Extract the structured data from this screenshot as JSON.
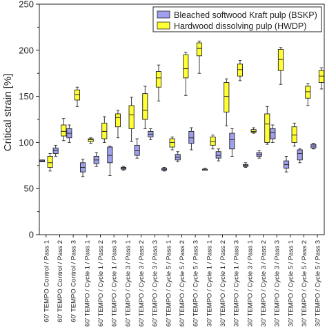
{
  "chart_data": {
    "type": "box",
    "ylabel": "Critical strain [%]",
    "ylim": [
      0,
      250
    ],
    "yticks": [
      0,
      50,
      100,
      150,
      200,
      250
    ],
    "legend_position": "top-right",
    "categories": [
      "60' TEMPO Control / Pass 1",
      "60' TEMPO Control / Pass 2",
      "60' TEMPO Control / Pass 3",
      "60' TEMPO / Cycle 1 / Pass 1",
      "60' TEMPO / Cycle 1 / Pass 2",
      "60' TEMPO / Cycle 1 / Pass 3",
      "60' TEMPO / Cycle 3 / Pass 1",
      "60' TEMPO / Cycle 3 / Pass 2",
      "60' TEMPO / Cycle 3 / Pass 3",
      "60' TEMPO / Cycle 5 / Pass 1",
      "60' TEMPO / Cycle 5 / Pass 2",
      "60' TEMPO / Cycle 5 / Pass 3",
      "30' TEMPO / Cycle 1 / Pass 1",
      "30' TEMPO / Cycle 1 / Pass 2",
      "30' TEMPO / Cycle 1 / Pass 3",
      "30' TEMPO / Cycle 3 / Pass 1",
      "30' TEMPO / Cycle 3 / Pass 2",
      "30' TEMPO / Cycle 3 / Pass 3",
      "30' TEMPO / Cycle 5 / Pass 1",
      "30' TEMPO / Cycle 5 / Pass 2",
      "30' TEMPO / Cycle 5 / Pass 3"
    ],
    "series": [
      {
        "name": "Bleached softwood Kraft pulp (BSKP)",
        "color": "#9f9fec",
        "boxes": [
          {
            "min": 79,
            "q1": 79,
            "median": 80,
            "q3": 81,
            "max": 81
          },
          {
            "min": 85,
            "q1": 88,
            "median": 91,
            "q3": 94,
            "max": 97
          },
          {
            "min": 100,
            "q1": 105,
            "median": 110,
            "q3": 115,
            "max": 119
          },
          {
            "min": 63,
            "q1": 68,
            "median": 73,
            "q3": 78,
            "max": 82
          },
          {
            "min": 74,
            "q1": 77,
            "median": 81,
            "q3": 85,
            "max": 89
          },
          {
            "min": 64,
            "q1": 78,
            "median": 86,
            "q3": 95,
            "max": 96
          },
          {
            "min": 70,
            "q1": 71,
            "median": 72,
            "q3": 73,
            "max": 74
          },
          {
            "min": 83,
            "q1": 86,
            "median": 91,
            "q3": 97,
            "max": 104
          },
          {
            "min": 103,
            "q1": 106,
            "median": 109,
            "q3": 112,
            "max": 115
          },
          {
            "min": 69,
            "q1": 70,
            "median": 71,
            "q3": 72,
            "max": 73
          },
          {
            "min": 79,
            "q1": 81,
            "median": 84,
            "q3": 87,
            "max": 90
          },
          {
            "min": 92,
            "q1": 99,
            "median": 105,
            "q3": 112,
            "max": 116
          },
          {
            "min": 70,
            "q1": 70,
            "median": 71,
            "q3": 71,
            "max": 72
          },
          {
            "min": 80,
            "q1": 83,
            "median": 86,
            "q3": 90,
            "max": 93
          },
          {
            "min": 85,
            "q1": 93,
            "median": 103,
            "q3": 110,
            "max": 115
          },
          {
            "min": 73,
            "q1": 74,
            "median": 75,
            "q3": 76,
            "max": 78
          },
          {
            "min": 83,
            "q1": 85,
            "median": 87,
            "q3": 89,
            "max": 91
          },
          {
            "min": 100,
            "q1": 104,
            "median": 111,
            "q3": 115,
            "max": 119
          },
          {
            "min": 68,
            "q1": 72,
            "median": 76,
            "q3": 80,
            "max": 85
          },
          {
            "min": 78,
            "q1": 81,
            "median": 88,
            "q3": 92,
            "max": 93
          },
          {
            "min": 93,
            "q1": 94,
            "median": 96,
            "q3": 98,
            "max": 99
          }
        ]
      },
      {
        "name": "Hardwood dissolving pulp (HWDP)",
        "color": "#ffff33",
        "boxes": [
          {
            "min": 69,
            "q1": 73,
            "median": 78,
            "q3": 85,
            "max": 88
          },
          {
            "min": 102,
            "q1": 107,
            "median": 112,
            "q3": 119,
            "max": 126
          },
          {
            "min": 139,
            "q1": 146,
            "median": 152,
            "q3": 157,
            "max": 160
          },
          {
            "min": 99,
            "q1": 101,
            "median": 103,
            "q3": 104,
            "max": 105
          },
          {
            "min": 100,
            "q1": 104,
            "median": 112,
            "q3": 121,
            "max": 128
          },
          {
            "min": 105,
            "q1": 117,
            "median": 127,
            "q3": 131,
            "max": 135
          },
          {
            "min": 101,
            "q1": 115,
            "median": 130,
            "q3": 140,
            "max": 149
          },
          {
            "min": 115,
            "q1": 125,
            "median": 135,
            "q3": 153,
            "max": 161
          },
          {
            "min": 145,
            "q1": 160,
            "median": 170,
            "q3": 177,
            "max": 184
          },
          {
            "min": 92,
            "q1": 95,
            "median": 100,
            "q3": 104,
            "max": 106
          },
          {
            "min": 151,
            "q1": 170,
            "median": 180,
            "q3": 195,
            "max": 198
          },
          {
            "min": 175,
            "q1": 194,
            "median": 202,
            "q3": 208,
            "max": 210
          },
          {
            "min": 93,
            "q1": 97,
            "median": 101,
            "q3": 106,
            "max": 108
          },
          {
            "min": 118,
            "q1": 133,
            "median": 150,
            "q3": 165,
            "max": 169
          },
          {
            "min": 167,
            "q1": 172,
            "median": 179,
            "q3": 185,
            "max": 189
          },
          {
            "min": 110,
            "q1": 111,
            "median": 112,
            "q3": 114,
            "max": 116
          },
          {
            "min": 98,
            "q1": 100,
            "median": 120,
            "q3": 131,
            "max": 139
          },
          {
            "min": 163,
            "q1": 178,
            "median": 190,
            "q3": 201,
            "max": 203
          },
          {
            "min": 96,
            "q1": 100,
            "median": 108,
            "q3": 117,
            "max": 121
          },
          {
            "min": 140,
            "q1": 148,
            "median": 155,
            "q3": 161,
            "max": 164
          },
          {
            "min": 158,
            "q1": 165,
            "median": 172,
            "q3": 178,
            "max": 181
          }
        ]
      }
    ]
  }
}
